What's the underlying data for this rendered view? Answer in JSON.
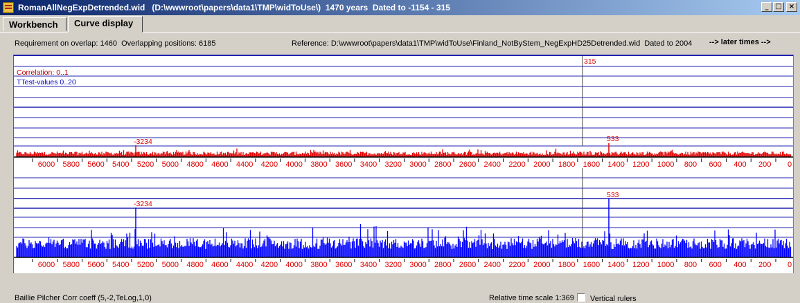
{
  "window": {
    "title": "RomanAllNegExpDetrended.wid   (D:\\wwwroot\\papers\\data1\\TMP\\widToUse\\)  1470 years  Dated to -1154 - 315",
    "minimize": "_",
    "maximize": "□",
    "close": "×"
  },
  "tabs": [
    {
      "label": "Workbench"
    },
    {
      "label": "Curve display"
    }
  ],
  "info": {
    "overlap": "Requirement on overlap: 1460  Overlapping positions: 6185",
    "reference": "Reference: D:\\wwwroot\\papers\\data1\\TMP\\widToUse\\Finland_NotByStem_NegExpHD25Detrended.wid  Dated to 2004",
    "later_times": "--> later times -->"
  },
  "plot": {
    "legend_correlation": "Correlation: 0..1",
    "legend_ttest": "TTest-values 0..20",
    "cursor_label": "315",
    "peak_label_left": "-3234",
    "peak_label_right": "533",
    "peak_label_left_2": "-3234",
    "peak_label_right_2": "533",
    "axis_ticks": [
      "6000",
      "5800",
      "5600",
      "5400",
      "5200",
      "5000",
      "4800",
      "4600",
      "4400",
      "4200",
      "4000",
      "3800",
      "3600",
      "3400",
      "3200",
      "3000",
      "2800",
      "2600",
      "2400",
      "2200",
      "2000",
      "1800",
      "1600",
      "1400",
      "1200",
      "1000",
      "800",
      "600",
      "400",
      "200",
      "0"
    ],
    "colors": {
      "correlation": "#e00000",
      "ttest": "#0000ff",
      "axis": "#e00000",
      "grid": "#2020b0"
    }
  },
  "status": {
    "method": "Baillie Pilcher Corr coeff (5,-2,TeLog,1,0)",
    "time_scale": "Relative time scale 1:369",
    "vertical_rulers": "Vertical rulers"
  }
}
